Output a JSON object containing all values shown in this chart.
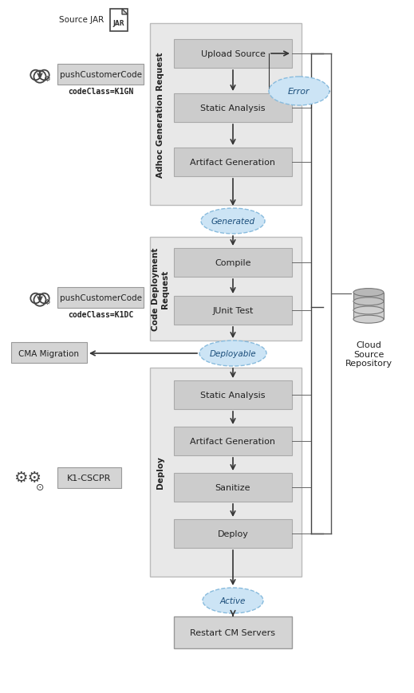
{
  "bg_color": "#ffffff",
  "section_bg": "#e8e8e8",
  "section_ec": "#bbbbbb",
  "box_bg": "#cccccc",
  "box_ec": "#aaaaaa",
  "ellipse_bg": "#cce4f5",
  "ellipse_ec": "#88bbdd",
  "label_box_bg": "#d4d4d4",
  "label_box_ec": "#999999",
  "restart_box_bg": "#d4d4d4",
  "restart_box_ec": "#999999",
  "text_color": "#222222",
  "arrow_color": "#333333",
  "line_color": "#555555",
  "section1_label": "Adhoc Generation Request",
  "section2_label": "Code Deployment\nRequest",
  "section3_label": "Deploy",
  "section1_boxes": [
    "Upload Source",
    "Static Analysis",
    "Artifact Generation"
  ],
  "section2_boxes": [
    "Compile",
    "JUnit Test"
  ],
  "section3_boxes": [
    "Static Analysis",
    "Artifact Generation",
    "Sanitize",
    "Deploy"
  ],
  "ellipse1": "Generated",
  "ellipse2": "Deployable",
  "ellipse3": "Active",
  "error_label": "Error",
  "cma_label": "CMA Migration",
  "source_jar_label": "Source JAR",
  "cloud_repo_label": "Cloud\nSource\nRepository",
  "push_label1": "pushCustomerCode",
  "code_class1": "codeClass=K1GN",
  "push_label2": "pushCustomerCode",
  "code_class2": "codeClass=K1DC",
  "k1_label": "K1-CSCPR",
  "restart_label": "Restart CM Servers"
}
